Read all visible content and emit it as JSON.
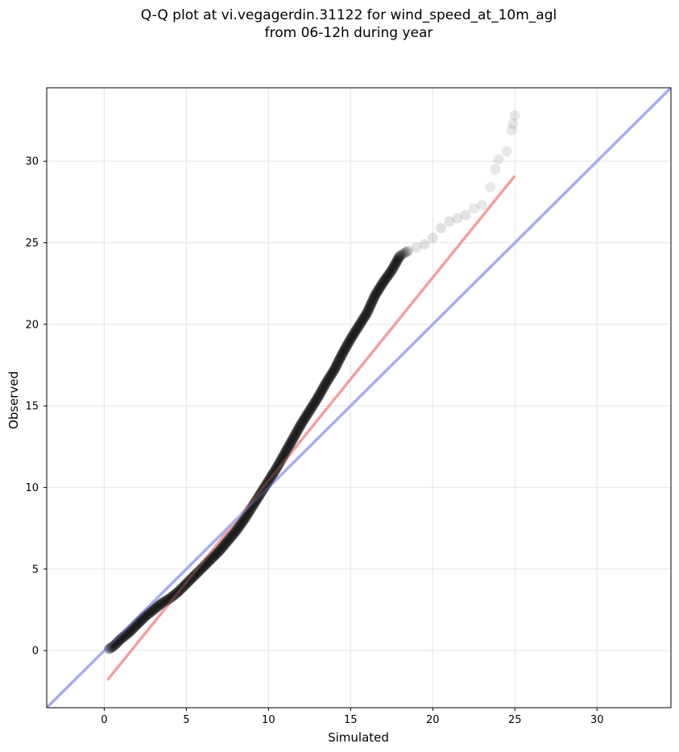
{
  "chart_data": {
    "type": "scatter",
    "title_lines": [
      "Q-Q plot at vi.vegagerdin.31122 for wind_speed_at_10m_agl",
      "from 06-12h during year"
    ],
    "xlabel": "Simulated",
    "ylabel": "Observed",
    "xlim": [
      -3.5,
      34.5
    ],
    "ylim": [
      -3.5,
      34.5
    ],
    "x_ticks": [
      0,
      5,
      10,
      15,
      20,
      25,
      30
    ],
    "y_ticks": [
      0,
      5,
      10,
      15,
      20,
      25,
      30
    ],
    "grid": true,
    "legend": "none",
    "series": [
      {
        "kind": "quantile-points",
        "color": "#000000",
        "x": [
          0.3,
          0.6,
          1.0,
          1.5,
          2.0,
          2.5,
          3.0,
          3.5,
          4.0,
          4.5,
          5.0,
          5.5,
          6.0,
          6.5,
          7.0,
          7.5,
          8.0,
          8.5,
          9.0,
          9.5,
          10.0,
          10.5,
          11.0,
          11.5,
          12.0,
          12.5,
          13.0,
          13.5,
          14.0,
          14.5,
          15.0,
          15.5,
          16.0,
          16.5,
          17.0,
          17.5,
          18.0,
          18.5,
          19.0,
          19.5,
          20.0,
          20.5,
          21.0,
          21.5,
          22.0,
          22.5,
          23.0,
          23.5,
          23.8,
          24.0,
          24.5,
          24.8,
          24.9,
          25.0
        ],
        "y": [
          0.1,
          0.3,
          0.7,
          1.1,
          1.6,
          2.1,
          2.5,
          2.9,
          3.2,
          3.6,
          4.1,
          4.6,
          5.1,
          5.6,
          6.1,
          6.7,
          7.3,
          8.0,
          8.8,
          9.6,
          10.4,
          11.2,
          12.1,
          13.0,
          13.9,
          14.7,
          15.5,
          16.4,
          17.2,
          18.2,
          19.1,
          19.9,
          20.7,
          21.8,
          22.6,
          23.3,
          24.2,
          24.5,
          24.7,
          24.9,
          25.3,
          25.9,
          26.3,
          26.5,
          26.7,
          27.1,
          27.3,
          28.4,
          29.5,
          30.1,
          30.6,
          31.9,
          32.3,
          32.8
        ]
      },
      {
        "kind": "regression-line",
        "color": "#f4a0a0",
        "x": [
          0.2,
          25.0
        ],
        "y": [
          -1.8,
          29.1
        ]
      },
      {
        "kind": "identity-line",
        "color": "#a8aef0",
        "x": [
          -3.5,
          34.5
        ],
        "y": [
          -3.5,
          34.5
        ]
      }
    ]
  }
}
